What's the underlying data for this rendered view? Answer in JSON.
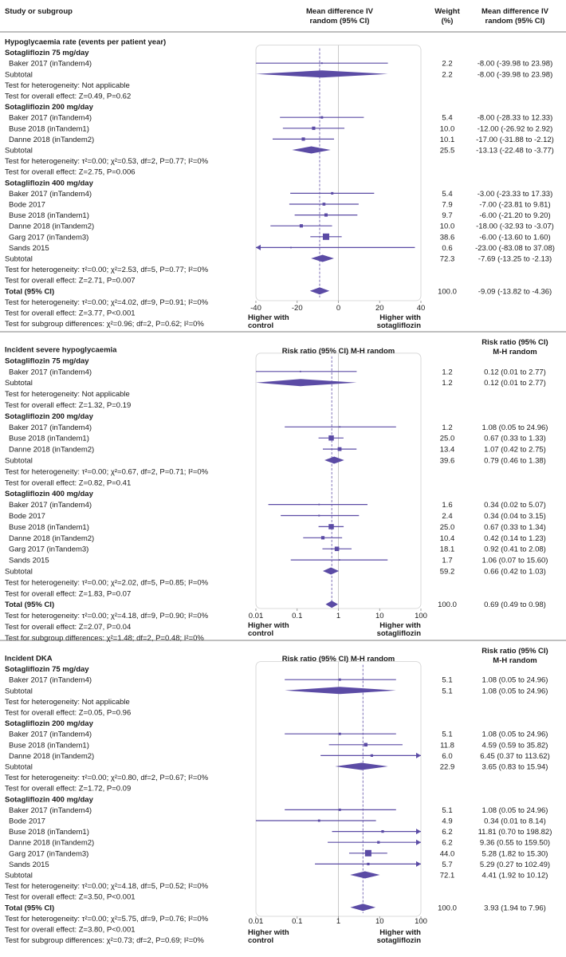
{
  "header": {
    "col_study": "Study or subgroup",
    "col_weight": "Weight\n(%)",
    "panel1_effect_header": "Mean difference IV\nrandom (95% CI)",
    "panel1_value_header": "Mean difference IV\nrandom (95% CI)"
  },
  "colors": {
    "accent": "#5b4ba5",
    "frame": "#cfcfcf",
    "divider": "#555555"
  },
  "chart_data": [
    {
      "type": "forest",
      "title": "Hypoglycaemia rate (events per patient year)",
      "scale": "linear",
      "xlim": [
        -40,
        40
      ],
      "ticks": [
        -40,
        -20,
        0,
        20,
        40
      ],
      "overall_estimate": -9.09,
      "left_label": "Higher with\ncontrol",
      "right_label": "Higher with\nsotagliflozin",
      "rows": [
        {
          "kind": "title",
          "label": "Hypoglycaemia rate (events per patient year)"
        },
        {
          "kind": "group",
          "label": "Sotagliflozin 75 mg/day"
        },
        {
          "kind": "study",
          "label": "Baker 2017 (inTandem4)",
          "weight": "2.2",
          "est": -8.0,
          "lo": -39.98,
          "hi": 23.98,
          "ci": "-8.00 (-39.98 to 23.98)"
        },
        {
          "kind": "subtotal",
          "label": "Subtotal",
          "weight": "2.2",
          "est": -8.0,
          "lo": -39.98,
          "hi": 23.98,
          "ci": "-8.00 (-39.98 to 23.98)"
        },
        {
          "kind": "text",
          "label": "Test for heterogeneity: Not applicable"
        },
        {
          "kind": "text",
          "label": "Test for overall effect: Z=0.49, P=0.62"
        },
        {
          "kind": "group",
          "label": "Sotagliflozin 200 mg/day"
        },
        {
          "kind": "study",
          "label": "Baker 2017 (inTandem4)",
          "weight": "5.4",
          "est": -8.0,
          "lo": -28.33,
          "hi": 12.33,
          "ci": "-8.00 (-28.33 to 12.33)"
        },
        {
          "kind": "study",
          "label": "Buse 2018 (inTandem1)",
          "weight": "10.0",
          "est": -12.0,
          "lo": -26.92,
          "hi": 2.92,
          "ci": "-12.00 (-26.92 to 2.92)"
        },
        {
          "kind": "study",
          "label": "Danne 2018 (inTandem2)",
          "weight": "10.1",
          "est": -17.0,
          "lo": -31.88,
          "hi": -2.12,
          "ci": "-17.00 (-31.88 to -2.12)"
        },
        {
          "kind": "subtotal",
          "label": "Subtotal",
          "weight": "25.5",
          "est": -13.13,
          "lo": -22.48,
          "hi": -3.77,
          "ci": "-13.13 (-22.48 to -3.77)"
        },
        {
          "kind": "text",
          "label": "Test for heterogeneity: τ²=0.00; χ²=0.53, df=2, P=0.77; I²=0%"
        },
        {
          "kind": "text",
          "label": "Test for overall effect: Z=2.75, P=0.006"
        },
        {
          "kind": "group",
          "label": "Sotagliflozin 400 mg/day"
        },
        {
          "kind": "study",
          "label": "Baker 2017 (inTandem4)",
          "weight": "5.4",
          "est": -3.0,
          "lo": -23.33,
          "hi": 17.33,
          "ci": "-3.00 (-23.33 to 17.33)"
        },
        {
          "kind": "study",
          "label": "Bode 2017",
          "weight": "7.9",
          "est": -7.0,
          "lo": -23.81,
          "hi": 9.81,
          "ci": "-7.00 (-23.81 to 9.81)"
        },
        {
          "kind": "study",
          "label": "Buse 2018 (inTandem1)",
          "weight": "9.7",
          "est": -6.0,
          "lo": -21.2,
          "hi": 9.2,
          "ci": "-6.00 (-21.20 to 9.20)"
        },
        {
          "kind": "study",
          "label": "Danne 2018 (inTandem2)",
          "weight": "10.0",
          "est": -18.0,
          "lo": -32.93,
          "hi": -3.07,
          "ci": "-18.00 (-32.93 to -3.07)"
        },
        {
          "kind": "study",
          "label": "Garg 2017 (inTandem3)",
          "weight": "38.6",
          "est": -6.0,
          "lo": -13.6,
          "hi": 1.6,
          "ci": "-6.00 (-13.60 to 1.60)"
        },
        {
          "kind": "study",
          "label": "Sands 2015",
          "weight": "0.6",
          "est": -23.0,
          "lo": -83.08,
          "hi": 37.08,
          "ci": "-23.00 (-83.08 to 37.08)"
        },
        {
          "kind": "subtotal",
          "label": "Subtotal",
          "weight": "72.3",
          "est": -7.69,
          "lo": -13.25,
          "hi": -2.13,
          "ci": "-7.69 (-13.25 to -2.13)"
        },
        {
          "kind": "text",
          "label": "Test for heterogeneity: τ²=0.00; χ²=2.53, df=5, P=0.77; I²=0%"
        },
        {
          "kind": "text",
          "label": "Test for overall effect: Z=2.71, P=0.007"
        },
        {
          "kind": "total",
          "label": "Total (95% CI)",
          "weight": "100.0",
          "est": -9.09,
          "lo": -13.82,
          "hi": -4.36,
          "ci": "-9.09 (-13.82 to -4.36)"
        },
        {
          "kind": "text",
          "label": "Test for heterogeneity: τ²=0.00; χ²=4.02, df=9, P=0.91; I²=0%"
        },
        {
          "kind": "text",
          "label": "Test for overall effect: Z=3.77, P<0.001"
        },
        {
          "kind": "text",
          "label": "Test for subgroup differences: χ²=0.96; df=2, P=0.62; I²=0%"
        }
      ]
    },
    {
      "type": "forest",
      "title": "Incident severe hypoglycaemia",
      "scale": "log",
      "xlim": [
        0.01,
        100
      ],
      "ticks": [
        0.01,
        0.1,
        1,
        10,
        100
      ],
      "tick_labels": [
        "0.01",
        "0.1",
        "1",
        "10",
        "100"
      ],
      "axis_caption": "Risk ratio (95% CI) M-H random",
      "value_header": "Risk ratio (95% CI)\nM-H random",
      "overall_estimate": 0.69,
      "left_label": "Higher with\ncontrol",
      "right_label": "Higher with\nsotagliflozin",
      "rows": [
        {
          "kind": "title",
          "label": "Incident severe hypoglycaemia"
        },
        {
          "kind": "group",
          "label": "Sotagliflozin 75 mg/day"
        },
        {
          "kind": "study",
          "label": "Baker 2017 (inTandem4)",
          "weight": "1.2",
          "est": 0.12,
          "lo": 0.01,
          "hi": 2.77,
          "ci": "0.12 (0.01 to 2.77)"
        },
        {
          "kind": "subtotal",
          "label": "Subtotal",
          "weight": "1.2",
          "est": 0.12,
          "lo": 0.01,
          "hi": 2.77,
          "ci": "0.12 (0.01 to 2.77)"
        },
        {
          "kind": "text",
          "label": "Test for heterogeneity: Not applicable"
        },
        {
          "kind": "text",
          "label": "Test for overall effect: Z=1.32, P=0.19"
        },
        {
          "kind": "group",
          "label": "Sotagliflozin 200 mg/day"
        },
        {
          "kind": "study",
          "label": "Baker 2017 (inTandem4)",
          "weight": "1.2",
          "est": 1.08,
          "lo": 0.05,
          "hi": 24.96,
          "ci": "1.08 (0.05 to 24.96)"
        },
        {
          "kind": "study",
          "label": "Buse 2018 (inTandem1)",
          "weight": "25.0",
          "est": 0.67,
          "lo": 0.33,
          "hi": 1.33,
          "ci": "0.67 (0.33 to 1.33)"
        },
        {
          "kind": "study",
          "label": "Danne 2018 (inTandem2)",
          "weight": "13.4",
          "est": 1.07,
          "lo": 0.42,
          "hi": 2.75,
          "ci": "1.07 (0.42 to 2.75)"
        },
        {
          "kind": "subtotal",
          "label": "Subtotal",
          "weight": "39.6",
          "est": 0.79,
          "lo": 0.46,
          "hi": 1.38,
          "ci": "0.79 (0.46 to 1.38)"
        },
        {
          "kind": "text",
          "label": "Test for heterogeneity: τ²=0.00; χ²=0.67, df=2, P=0.71; I²=0%"
        },
        {
          "kind": "text",
          "label": "Test for overall effect: Z=0.82, P=0.41"
        },
        {
          "kind": "group",
          "label": "Sotagliflozin 400 mg/day"
        },
        {
          "kind": "study",
          "label": "Baker 2017 (inTandem4)",
          "weight": "1.6",
          "est": 0.34,
          "lo": 0.02,
          "hi": 5.07,
          "ci": "0.34 (0.02 to 5.07)"
        },
        {
          "kind": "study",
          "label": "Bode 2017",
          "weight": "2.4",
          "est": 0.34,
          "lo": 0.04,
          "hi": 3.15,
          "ci": "0.34 (0.04 to 3.15)"
        },
        {
          "kind": "study",
          "label": "Buse 2018 (inTandem1)",
          "weight": "25.0",
          "est": 0.67,
          "lo": 0.33,
          "hi": 1.34,
          "ci": "0.67 (0.33 to 1.34)"
        },
        {
          "kind": "study",
          "label": "Danne 2018 (inTandem2)",
          "weight": "10.4",
          "est": 0.42,
          "lo": 0.14,
          "hi": 1.23,
          "ci": "0.42 (0.14 to 1.23)"
        },
        {
          "kind": "study",
          "label": "Garg 2017 (inTandem3)",
          "weight": "18.1",
          "est": 0.92,
          "lo": 0.41,
          "hi": 2.08,
          "ci": "0.92 (0.41 to 2.08)"
        },
        {
          "kind": "study",
          "label": "Sands 2015",
          "weight": "1.7",
          "est": 1.06,
          "lo": 0.07,
          "hi": 15.6,
          "ci": "1.06 (0.07 to 15.60)"
        },
        {
          "kind": "subtotal",
          "label": "Subtotal",
          "weight": "59.2",
          "est": 0.66,
          "lo": 0.42,
          "hi": 1.03,
          "ci": "0.66 (0.42 to 1.03)"
        },
        {
          "kind": "text",
          "label": "Test for heterogeneity: τ²=0.00; χ²=2.02, df=5, P=0.85; I²=0%"
        },
        {
          "kind": "text",
          "label": "Test for overall effect: Z=1.83, P=0.07"
        },
        {
          "kind": "total",
          "label": "Total (95% CI)",
          "weight": "100.0",
          "est": 0.69,
          "lo": 0.49,
          "hi": 0.98,
          "ci": "0.69 (0.49 to 0.98)"
        },
        {
          "kind": "text",
          "label": "Test for heterogeneity: τ²=0.00; χ²=4.18, df=9, P=0.90; I²=0%"
        },
        {
          "kind": "text",
          "label": "Test for overall effect: Z=2.07, P=0.04"
        },
        {
          "kind": "text",
          "label": "Test for subgroup differences: χ²=1.48; df=2, P=0.48; I²=0%"
        }
      ]
    },
    {
      "type": "forest",
      "title": "Incident DKA",
      "scale": "log",
      "xlim": [
        0.01,
        100
      ],
      "ticks": [
        0.01,
        0.1,
        1,
        10,
        100
      ],
      "tick_labels": [
        "0.01",
        "0.1",
        "1",
        "10",
        "100"
      ],
      "axis_caption": "Risk ratio (95% CI) M-H random",
      "value_header": "Risk ratio (95% CI)\nM-H random",
      "overall_estimate": 3.93,
      "left_label": "Higher with\ncontrol",
      "right_label": "Higher with\nsotagliflozin",
      "rows": [
        {
          "kind": "title",
          "label": "Incident DKA"
        },
        {
          "kind": "group",
          "label": "Sotagliflozin 75 mg/day"
        },
        {
          "kind": "study",
          "label": "Baker 2017 (inTandem4)",
          "weight": "5.1",
          "est": 1.08,
          "lo": 0.05,
          "hi": 24.96,
          "ci": "1.08 (0.05 to 24.96)"
        },
        {
          "kind": "subtotal",
          "label": "Subtotal",
          "weight": "5.1",
          "est": 1.08,
          "lo": 0.05,
          "hi": 24.96,
          "ci": "1.08 (0.05 to 24.96)"
        },
        {
          "kind": "text",
          "label": "Test for heterogeneity: Not applicable"
        },
        {
          "kind": "text",
          "label": "Test for overall effect: Z=0.05, P=0.96"
        },
        {
          "kind": "group",
          "label": "Sotagliflozin 200 mg/day"
        },
        {
          "kind": "study",
          "label": "Baker 2017 (inTandem4)",
          "weight": "5.1",
          "est": 1.08,
          "lo": 0.05,
          "hi": 24.96,
          "ci": "1.08 (0.05 to 24.96)"
        },
        {
          "kind": "study",
          "label": "Buse 2018 (inTandem1)",
          "weight": "11.8",
          "est": 4.59,
          "lo": 0.59,
          "hi": 35.82,
          "ci": "4.59 (0.59 to 35.82)"
        },
        {
          "kind": "study",
          "label": "Danne 2018 (inTandem2)",
          "weight": "6.0",
          "est": 6.45,
          "lo": 0.37,
          "hi": 113.62,
          "ci": "6.45 (0.37 to 113.62)"
        },
        {
          "kind": "subtotal",
          "label": "Subtotal",
          "weight": "22.9",
          "est": 3.65,
          "lo": 0.83,
          "hi": 15.94,
          "ci": "3.65 (0.83 to 15.94)"
        },
        {
          "kind": "text",
          "label": "Test for heterogeneity: τ²=0.00; χ²=0.80, df=2, P=0.67; I²=0%"
        },
        {
          "kind": "text",
          "label": "Test for overall effect: Z=1.72, P=0.09"
        },
        {
          "kind": "group",
          "label": "Sotagliflozin 400 mg/day"
        },
        {
          "kind": "study",
          "label": "Baker 2017 (inTandem4)",
          "weight": "5.1",
          "est": 1.08,
          "lo": 0.05,
          "hi": 24.96,
          "ci": "1.08 (0.05 to 24.96)"
        },
        {
          "kind": "study",
          "label": "Bode 2017",
          "weight": "4.9",
          "est": 0.34,
          "lo": 0.01,
          "hi": 8.14,
          "ci": "0.34 (0.01 to 8.14)"
        },
        {
          "kind": "study",
          "label": "Buse 2018 (inTandem1)",
          "weight": "6.2",
          "est": 11.81,
          "lo": 0.7,
          "hi": 198.82,
          "ci": "11.81 (0.70 to 198.82)"
        },
        {
          "kind": "study",
          "label": "Danne 2018 (inTandem2)",
          "weight": "6.2",
          "est": 9.36,
          "lo": 0.55,
          "hi": 159.5,
          "ci": "9.36 (0.55 to 159.50)"
        },
        {
          "kind": "study",
          "label": "Garg 2017 (inTandem3)",
          "weight": "44.0",
          "est": 5.28,
          "lo": 1.82,
          "hi": 15.3,
          "ci": "5.28 (1.82 to 15.30)"
        },
        {
          "kind": "study",
          "label": "Sands 2015",
          "weight": "5.7",
          "est": 5.29,
          "lo": 0.27,
          "hi": 102.49,
          "ci": "5.29 (0.27 to 102.49)"
        },
        {
          "kind": "subtotal",
          "label": "Subtotal",
          "weight": "72.1",
          "est": 4.41,
          "lo": 1.92,
          "hi": 10.12,
          "ci": "4.41 (1.92 to 10.12)"
        },
        {
          "kind": "text",
          "label": "Test for heterogeneity: τ²=0.00; χ²=4.18, df=5, P=0.52; I²=0%"
        },
        {
          "kind": "text",
          "label": "Test for overall effect: Z=3.50, P<0.001"
        },
        {
          "kind": "total",
          "label": "Total (95% CI)",
          "weight": "100.0",
          "est": 3.93,
          "lo": 1.94,
          "hi": 7.96,
          "ci": "3.93 (1.94 to 7.96)"
        },
        {
          "kind": "text",
          "label": "Test for heterogeneity: τ²=0.00; χ²=5.75, df=9, P=0.76; I²=0%"
        },
        {
          "kind": "text",
          "label": "Test for overall effect: Z=3.80, P<0.001"
        },
        {
          "kind": "text",
          "label": "Test for subgroup differences: χ²=0.73; df=2, P=0.69; I²=0%"
        }
      ]
    }
  ]
}
